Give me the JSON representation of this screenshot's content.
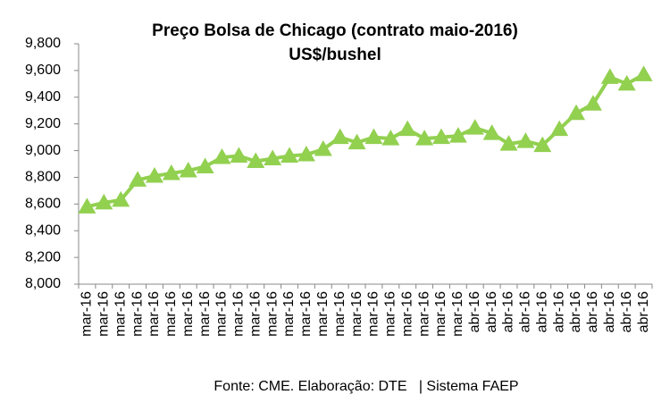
{
  "chart_data": {
    "type": "line",
    "title": "Preço Bolsa de Chicago (contrato maio-2016)",
    "subtitle": "US$/bushel",
    "source": "Fonte: CME. Elaboração: DTE   | Sistema FAEP",
    "categories": [
      "mar-16",
      "mar-16",
      "mar-16",
      "mar-16",
      "mar-16",
      "mar-16",
      "mar-16",
      "mar-16",
      "mar-16",
      "mar-16",
      "mar-16",
      "mar-16",
      "mar-16",
      "mar-16",
      "mar-16",
      "mar-16",
      "mar-16",
      "mar-16",
      "mar-16",
      "mar-16",
      "mar-16",
      "mar-16",
      "mar-16",
      "abr-16",
      "abr-16",
      "abr-16",
      "abr-16",
      "abr-16",
      "abr-16",
      "abr-16",
      "abr-16",
      "abr-16",
      "abr-16",
      "abr-16"
    ],
    "values": [
      8.58,
      8.61,
      8.63,
      8.78,
      8.81,
      8.83,
      8.85,
      8.88,
      8.95,
      8.96,
      8.92,
      8.94,
      8.96,
      8.97,
      9.01,
      9.1,
      9.06,
      9.1,
      9.09,
      9.16,
      9.09,
      9.1,
      9.11,
      9.17,
      9.13,
      9.05,
      9.07,
      9.04,
      9.16,
      9.28,
      9.35,
      9.55,
      9.5,
      9.57
    ],
    "color": "#92d050",
    "ylim": [
      8.0,
      9.8
    ],
    "yticks": [
      {
        "value": 8.0,
        "label": "8,000"
      },
      {
        "value": 8.2,
        "label": "8,200"
      },
      {
        "value": 8.4,
        "label": "8,400"
      },
      {
        "value": 8.6,
        "label": "8,600"
      },
      {
        "value": 8.8,
        "label": "8,800"
      },
      {
        "value": 9.0,
        "label": "9,000"
      },
      {
        "value": 9.2,
        "label": "9,200"
      },
      {
        "value": 9.4,
        "label": "9,400"
      },
      {
        "value": 9.6,
        "label": "9,600"
      },
      {
        "value": 9.8,
        "label": "9,800"
      }
    ],
    "grid": false
  }
}
